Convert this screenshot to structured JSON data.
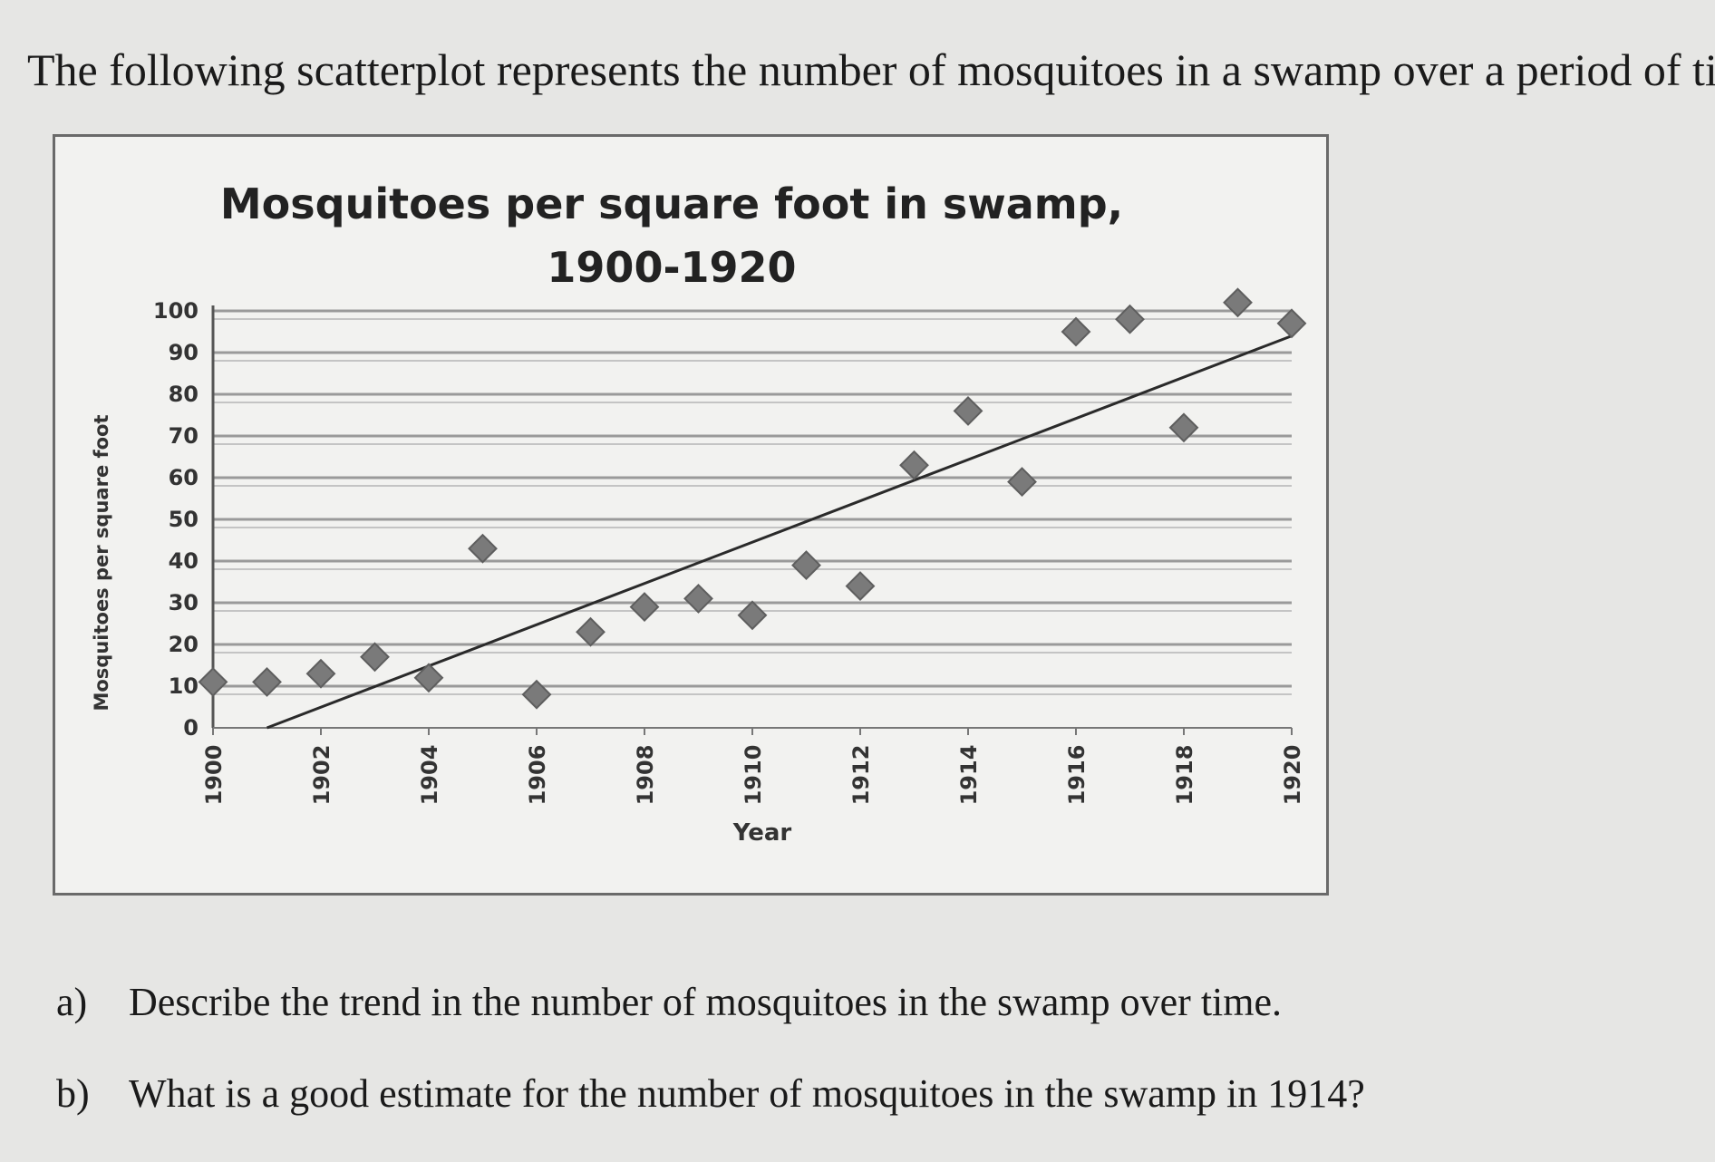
{
  "intro_text": "The following scatterplot represents the number of mosquitoes in a swamp over a period of time.",
  "questions": [
    {
      "letter": "a)",
      "text": "Describe the trend in the number of mosquitoes in the swamp over time."
    },
    {
      "letter": "b)",
      "text": "What is a good estimate for the number of mosquitoes in the swamp in 1914?"
    }
  ],
  "chart_data": {
    "type": "scatter",
    "title": [
      "Mosquitoes per square foot in swamp,",
      "1900-1920"
    ],
    "xlabel": "Year",
    "ylabel": "Mosquitoes per square foot",
    "xlim": [
      1900,
      1920
    ],
    "ylim": [
      0,
      100
    ],
    "xticks": [
      "1900",
      "1902",
      "1904",
      "1906",
      "1908",
      "1910",
      "1912",
      "1914",
      "1916",
      "1918",
      "1920"
    ],
    "yticks": [
      "0",
      "10",
      "20",
      "30",
      "40",
      "50",
      "60",
      "70",
      "80",
      "90",
      "100"
    ],
    "grid": true,
    "legend": "none",
    "marker_color": "#7a7a7a",
    "points": [
      {
        "x": 1900,
        "y": 11
      },
      {
        "x": 1901,
        "y": 11
      },
      {
        "x": 1902,
        "y": 13
      },
      {
        "x": 1903,
        "y": 17
      },
      {
        "x": 1904,
        "y": 12
      },
      {
        "x": 1905,
        "y": 43
      },
      {
        "x": 1906,
        "y": 8
      },
      {
        "x": 1907,
        "y": 23
      },
      {
        "x": 1908,
        "y": 29
      },
      {
        "x": 1909,
        "y": 31
      },
      {
        "x": 1910,
        "y": 27
      },
      {
        "x": 1911,
        "y": 39
      },
      {
        "x": 1912,
        "y": 34
      },
      {
        "x": 1913,
        "y": 63
      },
      {
        "x": 1914,
        "y": 76
      },
      {
        "x": 1915,
        "y": 59
      },
      {
        "x": 1916,
        "y": 95
      },
      {
        "x": 1917,
        "y": 98
      },
      {
        "x": 1918,
        "y": 72
      },
      {
        "x": 1919,
        "y": 102
      },
      {
        "x": 1920,
        "y": 97
      }
    ],
    "trendline": {
      "x": [
        1901,
        1920
      ],
      "y": [
        0,
        94
      ]
    }
  }
}
